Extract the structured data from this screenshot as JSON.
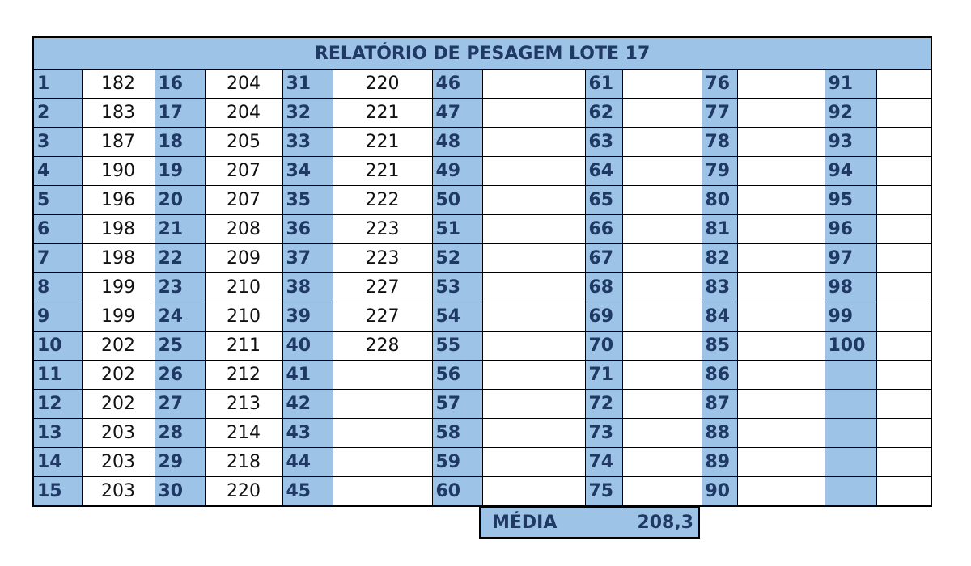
{
  "table": {
    "title": "RELATÓRIO DE PESAGEM LOTE 17",
    "rows": [
      [
        [
          1,
          182
        ],
        [
          16,
          204
        ],
        [
          31,
          220
        ],
        [
          46,
          null
        ],
        [
          61,
          null
        ],
        [
          76,
          null
        ],
        [
          91,
          null
        ]
      ],
      [
        [
          2,
          183
        ],
        [
          17,
          204
        ],
        [
          32,
          221
        ],
        [
          47,
          null
        ],
        [
          62,
          null
        ],
        [
          77,
          null
        ],
        [
          92,
          null
        ]
      ],
      [
        [
          3,
          187
        ],
        [
          18,
          205
        ],
        [
          33,
          221
        ],
        [
          48,
          null
        ],
        [
          63,
          null
        ],
        [
          78,
          null
        ],
        [
          93,
          null
        ]
      ],
      [
        [
          4,
          190
        ],
        [
          19,
          207
        ],
        [
          34,
          221
        ],
        [
          49,
          null
        ],
        [
          64,
          null
        ],
        [
          79,
          null
        ],
        [
          94,
          null
        ]
      ],
      [
        [
          5,
          196
        ],
        [
          20,
          207
        ],
        [
          35,
          222
        ],
        [
          50,
          null
        ],
        [
          65,
          null
        ],
        [
          80,
          null
        ],
        [
          95,
          null
        ]
      ],
      [
        [
          6,
          198
        ],
        [
          21,
          208
        ],
        [
          36,
          223
        ],
        [
          51,
          null
        ],
        [
          66,
          null
        ],
        [
          81,
          null
        ],
        [
          96,
          null
        ]
      ],
      [
        [
          7,
          198
        ],
        [
          22,
          209
        ],
        [
          37,
          223
        ],
        [
          52,
          null
        ],
        [
          67,
          null
        ],
        [
          82,
          null
        ],
        [
          97,
          null
        ]
      ],
      [
        [
          8,
          199
        ],
        [
          23,
          210
        ],
        [
          38,
          227
        ],
        [
          53,
          null
        ],
        [
          68,
          null
        ],
        [
          83,
          null
        ],
        [
          98,
          null
        ]
      ],
      [
        [
          9,
          199
        ],
        [
          24,
          210
        ],
        [
          39,
          227
        ],
        [
          54,
          null
        ],
        [
          69,
          null
        ],
        [
          84,
          null
        ],
        [
          99,
          null
        ]
      ],
      [
        [
          10,
          202
        ],
        [
          25,
          211
        ],
        [
          40,
          228
        ],
        [
          55,
          null
        ],
        [
          70,
          null
        ],
        [
          85,
          null
        ],
        [
          100,
          null
        ]
      ],
      [
        [
          11,
          202
        ],
        [
          26,
          212
        ],
        [
          41,
          null
        ],
        [
          56,
          null
        ],
        [
          71,
          null
        ],
        [
          86,
          null
        ],
        [
          null,
          null
        ]
      ],
      [
        [
          12,
          202
        ],
        [
          27,
          213
        ],
        [
          42,
          null
        ],
        [
          57,
          null
        ],
        [
          72,
          null
        ],
        [
          87,
          null
        ],
        [
          null,
          null
        ]
      ],
      [
        [
          13,
          203
        ],
        [
          28,
          214
        ],
        [
          43,
          null
        ],
        [
          58,
          null
        ],
        [
          73,
          null
        ],
        [
          88,
          null
        ],
        [
          null,
          null
        ]
      ],
      [
        [
          14,
          203
        ],
        [
          29,
          218
        ],
        [
          44,
          null
        ],
        [
          59,
          null
        ],
        [
          74,
          null
        ],
        [
          89,
          null
        ],
        [
          null,
          null
        ]
      ],
      [
        [
          15,
          203
        ],
        [
          30,
          220
        ],
        [
          45,
          null
        ],
        [
          60,
          null
        ],
        [
          75,
          null
        ],
        [
          90,
          null
        ],
        [
          null,
          null
        ]
      ]
    ]
  },
  "summary": {
    "label": "MÉDIA",
    "value": "208,3"
  }
}
